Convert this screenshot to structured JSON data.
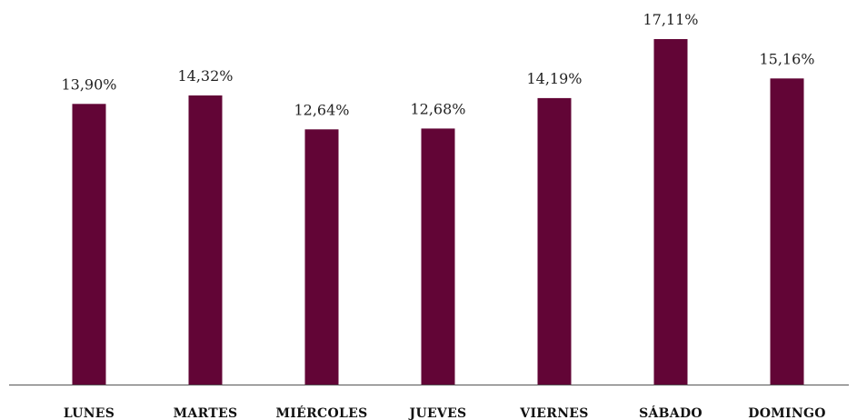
{
  "chart_data": {
    "type": "bar",
    "categories": [
      "LUNES",
      "MARTES",
      "MIÉRCOLES",
      "JUEVES",
      "VIERNES",
      "SÁBADO",
      "DOMINGO"
    ],
    "values": [
      13.9,
      14.32,
      12.64,
      12.68,
      14.19,
      17.11,
      15.16
    ],
    "value_labels": [
      "13,90%",
      "14,32%",
      "12,64%",
      "12,68%",
      "14,19%",
      "17,11%",
      "15,16%"
    ],
    "title": "",
    "xlabel": "",
    "ylabel": "",
    "ylim": [
      0,
      17.11
    ],
    "grid": false,
    "legend": "none",
    "bar_color": "#620536"
  }
}
